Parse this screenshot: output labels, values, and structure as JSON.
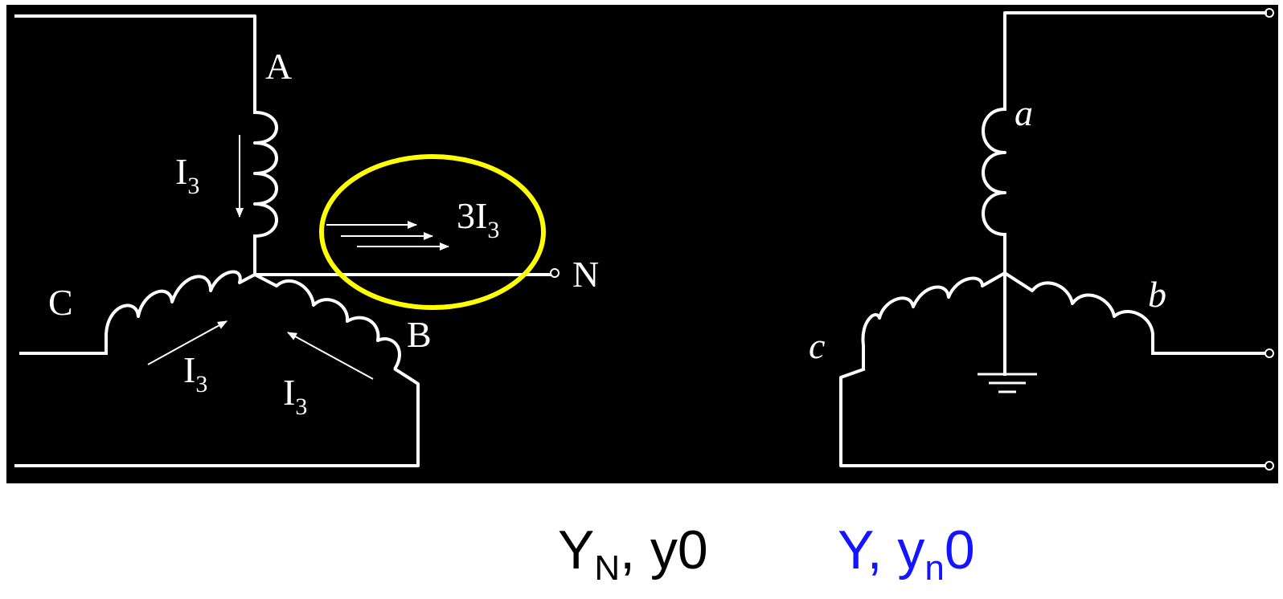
{
  "colors": {
    "panel_background": "#000000",
    "wire": "#ffffff",
    "highlight_ellipse": "#ffff00",
    "caption_primary": "#000000",
    "caption_secondary": "#1414ff",
    "page_background": "#ffffff"
  },
  "primary": {
    "phase_a": "A",
    "phase_b": "B",
    "phase_c": "C",
    "neutral": "N",
    "current_symbol": "I",
    "current_subscript": "3",
    "neutral_current_prefix": "3I",
    "neutral_current_subscript": "3"
  },
  "secondary": {
    "phase_a": "a",
    "phase_b": "b",
    "phase_c": "c"
  },
  "captions": {
    "left": {
      "main": "Y",
      "subscript": "N",
      "rest": ", y0"
    },
    "right": {
      "main": "Y, y",
      "subscript": "n",
      "rest": "0"
    }
  }
}
